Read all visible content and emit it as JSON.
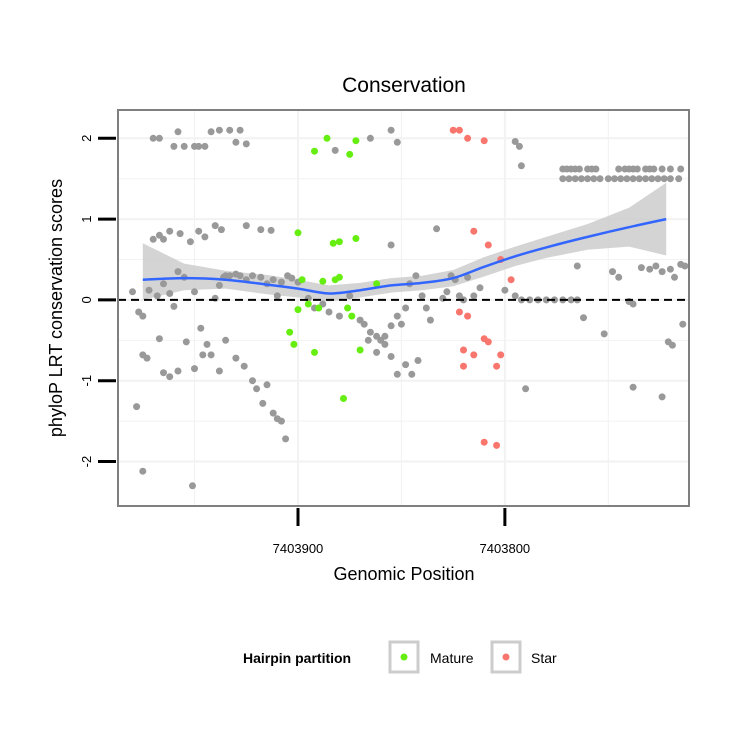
{
  "chart_data": {
    "type": "scatter",
    "title": "Conservation",
    "xlabel": "Genomic Position",
    "ylabel": "phyloP LRT conservation scores",
    "x_reversed": true,
    "xlim": [
      7403987,
      7403711
    ],
    "ylim": [
      -2.55,
      2.35
    ],
    "x_ticks": [
      7403900,
      7403800
    ],
    "x_tick_labels": [
      "7403900",
      "7403800"
    ],
    "y_ticks": [
      -2,
      -1,
      0,
      1,
      2
    ],
    "y_tick_labels": [
      "-2",
      "-1",
      "0",
      "1",
      "2"
    ],
    "grid": true,
    "reference_line": {
      "y": 0,
      "style": "dashed"
    },
    "legend": {
      "title": "Hairpin partition",
      "position": "bottom",
      "entries": [
        {
          "label": "Mature",
          "color": "#66ee11"
        },
        {
          "label": "Star",
          "color": "#f8766d"
        }
      ]
    },
    "colors": {
      "other": "#999999",
      "Mature": "#66ee11",
      "Star": "#f8766d",
      "smooth": "#3366ff",
      "ribbon": "#cccccc"
    },
    "smooth": {
      "x": [
        7403975,
        7403955,
        7403935,
        7403915,
        7403900,
        7403885,
        7403870,
        7403855,
        7403840,
        7403825,
        7403810,
        7403795,
        7403780,
        7403760,
        7403740,
        7403722
      ],
      "y": [
        0.25,
        0.27,
        0.25,
        0.19,
        0.14,
        0.08,
        0.12,
        0.18,
        0.21,
        0.27,
        0.41,
        0.54,
        0.65,
        0.78,
        0.9,
        1.0
      ],
      "lower": [
        0.0,
        0.12,
        0.14,
        0.07,
        0.03,
        -0.02,
        0.03,
        0.09,
        0.12,
        0.17,
        0.29,
        0.42,
        0.52,
        0.62,
        0.66,
        0.55
      ],
      "upper": [
        0.7,
        0.45,
        0.36,
        0.31,
        0.25,
        0.18,
        0.21,
        0.27,
        0.3,
        0.37,
        0.53,
        0.66,
        0.78,
        0.94,
        1.14,
        1.45
      ]
    },
    "series": [
      {
        "name": "Mature",
        "points": [
          [
            7403900,
            0.83
          ],
          [
            7403892,
            1.84
          ],
          [
            7403886,
            2.0
          ],
          [
            7403875,
            1.8
          ],
          [
            7403872,
            1.97
          ],
          [
            7403883,
            0.7
          ],
          [
            7403880,
            0.72
          ],
          [
            7403872,
            0.76
          ],
          [
            7403898,
            0.25
          ],
          [
            7403888,
            0.23
          ],
          [
            7403882,
            0.25
          ],
          [
            7403880,
            0.28
          ],
          [
            7403862,
            0.2
          ],
          [
            7403900,
            -0.12
          ],
          [
            7403895,
            -0.05
          ],
          [
            7403890,
            -0.1
          ],
          [
            7403876,
            -0.1
          ],
          [
            7403874,
            -0.2
          ],
          [
            7403904,
            -0.4
          ],
          [
            7403902,
            -0.55
          ],
          [
            7403892,
            -0.65
          ],
          [
            7403870,
            -0.62
          ],
          [
            7403878,
            -1.22
          ]
        ]
      },
      {
        "name": "Star",
        "points": [
          [
            7403825,
            2.1
          ],
          [
            7403822,
            2.1
          ],
          [
            7403818,
            2.0
          ],
          [
            7403810,
            1.97
          ],
          [
            7403815,
            0.85
          ],
          [
            7403808,
            0.68
          ],
          [
            7403802,
            0.5
          ],
          [
            7403797,
            0.25
          ],
          [
            7403822,
            -0.15
          ],
          [
            7403818,
            -0.2
          ],
          [
            7403810,
            -0.48
          ],
          [
            7403808,
            -0.52
          ],
          [
            7403820,
            -0.62
          ],
          [
            7403815,
            -0.68
          ],
          [
            7403802,
            -0.68
          ],
          [
            7403804,
            -0.82
          ],
          [
            7403820,
            -0.82
          ],
          [
            7403810,
            -1.76
          ],
          [
            7403804,
            -1.8
          ]
        ]
      },
      {
        "name": "other",
        "points": [
          [
            7403970,
            2.0
          ],
          [
            7403967,
            2.0
          ],
          [
            7403960,
            1.9
          ],
          [
            7403958,
            2.08
          ],
          [
            7403955,
            1.9
          ],
          [
            7403950,
            1.9
          ],
          [
            7403948,
            1.9
          ],
          [
            7403945,
            1.9
          ],
          [
            7403942,
            2.08
          ],
          [
            7403938,
            2.1
          ],
          [
            7403933,
            2.1
          ],
          [
            7403928,
            2.1
          ],
          [
            7403925,
            1.93
          ],
          [
            7403930,
            1.95
          ],
          [
            7403882,
            1.85
          ],
          [
            7403865,
            2.0
          ],
          [
            7403855,
            2.1
          ],
          [
            7403852,
            1.95
          ],
          [
            7403795,
            1.96
          ],
          [
            7403793,
            1.9
          ],
          [
            7403792,
            1.66
          ],
          [
            7403980,
            0.1
          ],
          [
            7403977,
            -0.15
          ],
          [
            7403975,
            -0.2
          ],
          [
            7403972,
            0.12
          ],
          [
            7403968,
            0.05
          ],
          [
            7403965,
            0.2
          ],
          [
            7403962,
            0.08
          ],
          [
            7403960,
            -0.08
          ],
          [
            7403958,
            0.35
          ],
          [
            7403955,
            0.28
          ],
          [
            7403950,
            0.1
          ],
          [
            7403947,
            -0.35
          ],
          [
            7403944,
            -0.55
          ],
          [
            7403940,
            0.02
          ],
          [
            7403938,
            0.18
          ],
          [
            7403936,
            0.28
          ],
          [
            7403935,
            0.3
          ],
          [
            7403933,
            0.3
          ],
          [
            7403930,
            0.32
          ],
          [
            7403928,
            0.3
          ],
          [
            7403925,
            0.25
          ],
          [
            7403922,
            0.3
          ],
          [
            7403918,
            0.28
          ],
          [
            7403915,
            0.2
          ],
          [
            7403912,
            0.25
          ],
          [
            7403910,
            0.05
          ],
          [
            7403908,
            0.22
          ],
          [
            7403905,
            0.3
          ],
          [
            7403903,
            0.27
          ],
          [
            7403900,
            0.22
          ],
          [
            7403895,
            0.02
          ],
          [
            7403892,
            -0.1
          ],
          [
            7403888,
            -0.05
          ],
          [
            7403885,
            -0.15
          ],
          [
            7403880,
            -0.2
          ],
          [
            7403875,
            0.05
          ],
          [
            7403870,
            -0.25
          ],
          [
            7403868,
            -0.3
          ],
          [
            7403865,
            -0.4
          ],
          [
            7403862,
            -0.45
          ],
          [
            7403860,
            -0.5
          ],
          [
            7403858,
            -0.45
          ],
          [
            7403855,
            -0.32
          ],
          [
            7403852,
            -0.2
          ],
          [
            7403850,
            -0.3
          ],
          [
            7403848,
            -0.1
          ],
          [
            7403846,
            0.2
          ],
          [
            7403843,
            0.3
          ],
          [
            7403840,
            0.05
          ],
          [
            7403838,
            -0.1
          ],
          [
            7403836,
            -0.25
          ],
          [
            7403833,
            0.88
          ],
          [
            7403830,
            0.02
          ],
          [
            7403828,
            0.1
          ],
          [
            7403826,
            0.3
          ],
          [
            7403824,
            0.25
          ],
          [
            7403822,
            0.05
          ],
          [
            7403820,
            0.0
          ],
          [
            7403970,
            0.75
          ],
          [
            7403967,
            0.8
          ],
          [
            7403965,
            0.75
          ],
          [
            7403962,
            0.85
          ],
          [
            7403957,
            0.82
          ],
          [
            7403952,
            0.72
          ],
          [
            7403948,
            0.85
          ],
          [
            7403945,
            0.78
          ],
          [
            7403940,
            0.92
          ],
          [
            7403937,
            0.87
          ],
          [
            7403925,
            0.92
          ],
          [
            7403918,
            0.87
          ],
          [
            7403913,
            0.86
          ],
          [
            7403855,
            0.68
          ],
          [
            7403975,
            -0.68
          ],
          [
            7403973,
            -0.72
          ],
          [
            7403967,
            -0.48
          ],
          [
            7403965,
            -0.9
          ],
          [
            7403962,
            -0.95
          ],
          [
            7403958,
            -0.88
          ],
          [
            7403954,
            -0.52
          ],
          [
            7403950,
            -0.85
          ],
          [
            7403946,
            -0.68
          ],
          [
            7403942,
            -0.68
          ],
          [
            7403938,
            -0.88
          ],
          [
            7403935,
            -0.5
          ],
          [
            7403930,
            -0.72
          ],
          [
            7403926,
            -0.82
          ],
          [
            7403922,
            -1.0
          ],
          [
            7403920,
            -1.1
          ],
          [
            7403917,
            -1.28
          ],
          [
            7403915,
            -1.05
          ],
          [
            7403912,
            -1.4
          ],
          [
            7403910,
            -1.47
          ],
          [
            7403908,
            -1.5
          ],
          [
            7403906,
            -1.72
          ],
          [
            7403978,
            -1.32
          ],
          [
            7403975,
            -2.12
          ],
          [
            7403951,
            -2.3
          ],
          [
            7403866,
            -0.5
          ],
          [
            7403862,
            -0.65
          ],
          [
            7403858,
            -0.55
          ],
          [
            7403855,
            -0.7
          ],
          [
            7403852,
            -0.92
          ],
          [
            7403848,
            -0.8
          ],
          [
            7403845,
            -0.92
          ],
          [
            7403842,
            -0.75
          ],
          [
            7403790,
            -1.1
          ],
          [
            7403818,
            0.28
          ],
          [
            7403815,
            0.05
          ],
          [
            7403812,
            0.15
          ],
          [
            7403800,
            0.12
          ],
          [
            7403795,
            0.05
          ],
          [
            7403792,
            0.0
          ],
          [
            7403788,
            0.0
          ],
          [
            7403784,
            0.0
          ],
          [
            7403780,
            0.0
          ],
          [
            7403776,
            0.0
          ],
          [
            7403772,
            0.0
          ],
          [
            7403768,
            0.0
          ],
          [
            7403765,
            0.0
          ],
          [
            7403772,
            1.62
          ],
          [
            7403770,
            1.62
          ],
          [
            7403768,
            1.62
          ],
          [
            7403766,
            1.62
          ],
          [
            7403764,
            1.62
          ],
          [
            7403760,
            1.62
          ],
          [
            7403758,
            1.62
          ],
          [
            7403756,
            1.62
          ],
          [
            7403745,
            1.62
          ],
          [
            7403742,
            1.62
          ],
          [
            7403740,
            1.62
          ],
          [
            7403738,
            1.62
          ],
          [
            7403736,
            1.62
          ],
          [
            7403732,
            1.62
          ],
          [
            7403730,
            1.62
          ],
          [
            7403728,
            1.62
          ],
          [
            7403724,
            1.62
          ],
          [
            7403720,
            1.62
          ],
          [
            7403715,
            1.62
          ],
          [
            7403772,
            1.5
          ],
          [
            7403769,
            1.5
          ],
          [
            7403766,
            1.5
          ],
          [
            7403763,
            1.5
          ],
          [
            7403760,
            1.5
          ],
          [
            7403757,
            1.5
          ],
          [
            7403754,
            1.5
          ],
          [
            7403750,
            1.5
          ],
          [
            7403747,
            1.5
          ],
          [
            7403744,
            1.5
          ],
          [
            7403741,
            1.5
          ],
          [
            7403738,
            1.5
          ],
          [
            7403735,
            1.5
          ],
          [
            7403732,
            1.5
          ],
          [
            7403729,
            1.5
          ],
          [
            7403726,
            1.5
          ],
          [
            7403723,
            1.5
          ],
          [
            7403720,
            1.5
          ],
          [
            7403716,
            1.5
          ],
          [
            7403765,
            0.42
          ],
          [
            7403762,
            -0.22
          ],
          [
            7403752,
            -0.42
          ],
          [
            7403748,
            0.35
          ],
          [
            7403745,
            0.28
          ],
          [
            7403740,
            -0.02
          ],
          [
            7403738,
            -0.05
          ],
          [
            7403734,
            0.4
          ],
          [
            7403730,
            0.38
          ],
          [
            7403727,
            0.42
          ],
          [
            7403724,
            0.35
          ],
          [
            7403720,
            0.38
          ],
          [
            7403718,
            0.28
          ],
          [
            7403715,
            0.44
          ],
          [
            7403713,
            0.42
          ],
          [
            7403738,
            -1.08
          ],
          [
            7403724,
            -1.2
          ],
          [
            7403721,
            -0.52
          ],
          [
            7403719,
            -0.56
          ],
          [
            7403714,
            -0.3
          ]
        ]
      }
    ]
  }
}
